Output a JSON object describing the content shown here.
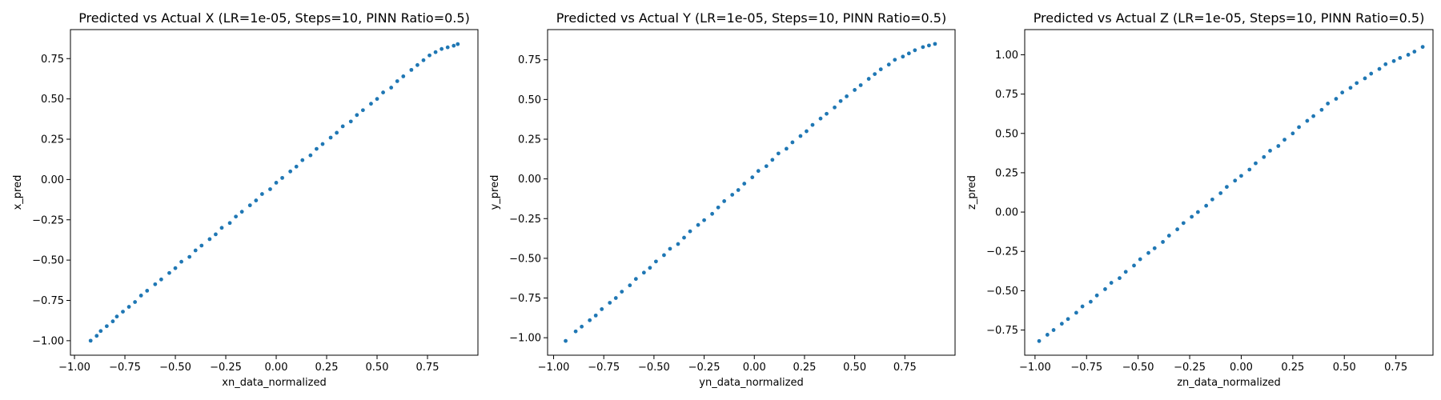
{
  "chart_data": [
    {
      "type": "scatter",
      "title": "Predicted vs Actual X (LR=1e-05, Steps=10, PINN Ratio=0.5)",
      "xlabel": "xn_data_normalized",
      "ylabel": "x_pred",
      "xlim": [
        -1.02,
        1.0
      ],
      "ylim": [
        -1.09,
        0.93
      ],
      "xticks": [
        -1.0,
        -0.75,
        -0.5,
        -0.25,
        0.0,
        0.25,
        0.5,
        0.75
      ],
      "xtick_labels": [
        "−1.00",
        "−0.75",
        "−0.50",
        "−0.25",
        "0.00",
        "0.25",
        "0.50",
        "0.75"
      ],
      "yticks": [
        -1.0,
        -0.75,
        -0.5,
        -0.25,
        0.0,
        0.25,
        0.5,
        0.75
      ],
      "ytick_labels": [
        "−1.00",
        "−0.75",
        "−0.50",
        "−0.25",
        "0.00",
        "0.25",
        "0.50",
        "0.75"
      ],
      "color": "#1f77b4",
      "grid": false,
      "points": {
        "x": [
          -0.92,
          -0.89,
          -0.87,
          -0.84,
          -0.81,
          -0.79,
          -0.76,
          -0.73,
          -0.7,
          -0.67,
          -0.64,
          -0.6,
          -0.57,
          -0.53,
          -0.5,
          -0.47,
          -0.43,
          -0.4,
          -0.37,
          -0.33,
          -0.3,
          -0.27,
          -0.23,
          -0.2,
          -0.17,
          -0.13,
          -0.1,
          -0.07,
          -0.03,
          0.0,
          0.03,
          0.07,
          0.1,
          0.13,
          0.17,
          0.2,
          0.23,
          0.27,
          0.3,
          0.33,
          0.37,
          0.4,
          0.43,
          0.47,
          0.5,
          0.53,
          0.57,
          0.6,
          0.63,
          0.67,
          0.7,
          0.73,
          0.76,
          0.79,
          0.82,
          0.85,
          0.88,
          0.9
        ],
        "y": [
          -1.0,
          -0.97,
          -0.94,
          -0.91,
          -0.88,
          -0.85,
          -0.82,
          -0.79,
          -0.76,
          -0.72,
          -0.69,
          -0.65,
          -0.62,
          -0.58,
          -0.55,
          -0.51,
          -0.48,
          -0.44,
          -0.41,
          -0.37,
          -0.34,
          -0.3,
          -0.27,
          -0.23,
          -0.2,
          -0.16,
          -0.13,
          -0.09,
          -0.06,
          -0.02,
          0.01,
          0.05,
          0.08,
          0.12,
          0.15,
          0.19,
          0.22,
          0.26,
          0.29,
          0.33,
          0.36,
          0.4,
          0.43,
          0.47,
          0.5,
          0.54,
          0.57,
          0.61,
          0.64,
          0.68,
          0.71,
          0.74,
          0.77,
          0.79,
          0.81,
          0.82,
          0.83,
          0.84
        ]
      }
    },
    {
      "type": "scatter",
      "title": "Predicted vs Actual Y (LR=1e-05, Steps=10, PINN Ratio=0.5)",
      "xlabel": "yn_data_normalized",
      "ylabel": "y_pred",
      "xlim": [
        -1.03,
        1.0
      ],
      "ylim": [
        -1.11,
        0.94
      ],
      "xticks": [
        -1.0,
        -0.75,
        -0.5,
        -0.25,
        0.0,
        0.25,
        0.5,
        0.75
      ],
      "xtick_labels": [
        "−1.00",
        "−0.75",
        "−0.50",
        "−0.25",
        "0.00",
        "0.25",
        "0.50",
        "0.75"
      ],
      "yticks": [
        -1.0,
        -0.75,
        -0.5,
        -0.25,
        0.0,
        0.25,
        0.5,
        0.75
      ],
      "ytick_labels": [
        "−1.00",
        "−0.75",
        "−0.50",
        "−0.25",
        "0.00",
        "0.25",
        "0.50",
        "0.75"
      ],
      "color": "#1f77b4",
      "grid": false,
      "points": {
        "x": [
          -0.94,
          -0.89,
          -0.86,
          -0.82,
          -0.79,
          -0.76,
          -0.72,
          -0.69,
          -0.66,
          -0.62,
          -0.59,
          -0.55,
          -0.52,
          -0.49,
          -0.45,
          -0.42,
          -0.38,
          -0.35,
          -0.32,
          -0.28,
          -0.25,
          -0.21,
          -0.18,
          -0.15,
          -0.11,
          -0.08,
          -0.05,
          -0.01,
          0.02,
          0.06,
          0.09,
          0.12,
          0.16,
          0.19,
          0.23,
          0.26,
          0.29,
          0.33,
          0.36,
          0.4,
          0.43,
          0.46,
          0.5,
          0.53,
          0.57,
          0.6,
          0.63,
          0.67,
          0.7,
          0.74,
          0.77,
          0.8,
          0.84,
          0.87,
          0.9
        ],
        "y": [
          -1.02,
          -0.96,
          -0.93,
          -0.89,
          -0.86,
          -0.82,
          -0.78,
          -0.75,
          -0.71,
          -0.67,
          -0.63,
          -0.59,
          -0.56,
          -0.52,
          -0.48,
          -0.44,
          -0.41,
          -0.37,
          -0.33,
          -0.29,
          -0.26,
          -0.22,
          -0.18,
          -0.14,
          -0.1,
          -0.07,
          -0.03,
          0.01,
          0.05,
          0.08,
          0.12,
          0.16,
          0.19,
          0.23,
          0.27,
          0.3,
          0.34,
          0.38,
          0.41,
          0.45,
          0.49,
          0.52,
          0.56,
          0.59,
          0.63,
          0.66,
          0.69,
          0.72,
          0.75,
          0.77,
          0.79,
          0.81,
          0.83,
          0.84,
          0.85
        ]
      }
    },
    {
      "type": "scatter",
      "title": "Predicted vs Actual Z (LR=1e-05, Steps=10, PINN Ratio=0.5)",
      "xlabel": "zn_data_normalized",
      "ylabel": "z_pred",
      "xlim": [
        -1.05,
        0.93
      ],
      "ylim": [
        -0.91,
        1.16
      ],
      "xticks": [
        -1.0,
        -0.75,
        -0.5,
        -0.25,
        0.0,
        0.25,
        0.5,
        0.75
      ],
      "xtick_labels": [
        "−1.00",
        "−0.75",
        "−0.50",
        "−0.25",
        "0.00",
        "0.25",
        "0.50",
        "0.75"
      ],
      "yticks": [
        -0.75,
        -0.5,
        -0.25,
        0.0,
        0.25,
        0.5,
        0.75,
        1.0
      ],
      "ytick_labels": [
        "−0.75",
        "−0.50",
        "−0.25",
        "0.00",
        "0.25",
        "0.50",
        "0.75",
        "1.00"
      ],
      "color": "#1f77b4",
      "grid": false,
      "points": {
        "x": [
          -0.98,
          -0.94,
          -0.91,
          -0.87,
          -0.84,
          -0.8,
          -0.77,
          -0.73,
          -0.7,
          -0.66,
          -0.63,
          -0.59,
          -0.56,
          -0.52,
          -0.49,
          -0.45,
          -0.42,
          -0.38,
          -0.35,
          -0.31,
          -0.28,
          -0.24,
          -0.21,
          -0.17,
          -0.14,
          -0.1,
          -0.07,
          -0.03,
          0.0,
          0.04,
          0.07,
          0.11,
          0.14,
          0.18,
          0.21,
          0.25,
          0.28,
          0.32,
          0.35,
          0.39,
          0.42,
          0.46,
          0.49,
          0.53,
          0.56,
          0.6,
          0.63,
          0.67,
          0.7,
          0.74,
          0.77,
          0.81,
          0.84,
          0.88
        ],
        "y": [
          -0.82,
          -0.78,
          -0.75,
          -0.71,
          -0.68,
          -0.64,
          -0.6,
          -0.57,
          -0.53,
          -0.49,
          -0.45,
          -0.42,
          -0.38,
          -0.34,
          -0.3,
          -0.26,
          -0.23,
          -0.19,
          -0.15,
          -0.11,
          -0.07,
          -0.03,
          0.0,
          0.04,
          0.08,
          0.12,
          0.16,
          0.2,
          0.23,
          0.27,
          0.31,
          0.35,
          0.39,
          0.42,
          0.46,
          0.5,
          0.54,
          0.58,
          0.61,
          0.65,
          0.69,
          0.72,
          0.76,
          0.79,
          0.82,
          0.85,
          0.88,
          0.91,
          0.94,
          0.96,
          0.98,
          1.0,
          1.02,
          1.05
        ]
      }
    }
  ]
}
